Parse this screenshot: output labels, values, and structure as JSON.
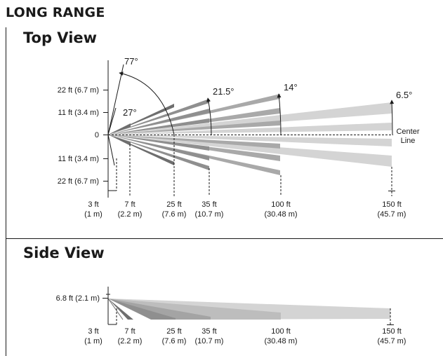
{
  "title": "LONG RANGE",
  "top_view": {
    "heading": "Top View",
    "y_labels": [
      "22 ft (6.7 m)",
      "11 ft (3.4 m)",
      "0",
      "11 ft (3.4 m)",
      "22 ft (6.7 m)"
    ],
    "angles": [
      "77°",
      "27°",
      "21.5°",
      "14°",
      "6.5°"
    ],
    "center_line": [
      "Center",
      "Line"
    ],
    "distances": [
      {
        "ft": "3 ft",
        "m": "(1 m)"
      },
      {
        "ft": "7 ft",
        "m": "(2.2 m)"
      },
      {
        "ft": "25 ft",
        "m": "(7.6 m)"
      },
      {
        "ft": "35 ft",
        "m": "(10.7 m)"
      },
      {
        "ft": "100 ft",
        "m": "(30.48 m)"
      },
      {
        "ft": "150 ft",
        "m": "(45.7 m)"
      }
    ]
  },
  "side_view": {
    "heading": "Side View",
    "height_label": "6.8 ft (2.1 m)",
    "distances": [
      {
        "ft": "3 ft",
        "m": "(1 m)"
      },
      {
        "ft": "7 ft",
        "m": "(2.2 m)"
      },
      {
        "ft": "25 ft",
        "m": "(7.6 m)"
      },
      {
        "ft": "35 ft",
        "m": "(10.7 m)"
      },
      {
        "ft": "100 ft",
        "m": "(30.48 m)"
      },
      {
        "ft": "150 ft",
        "m": "(45.7 m)"
      }
    ]
  },
  "colors": {
    "band_dark": "#6e6e6e",
    "band_mid": "#8f8f8f",
    "band_mid_light": "#a9a9a9",
    "band_light": "#d4d4d4",
    "line": "#1a1a1a"
  }
}
